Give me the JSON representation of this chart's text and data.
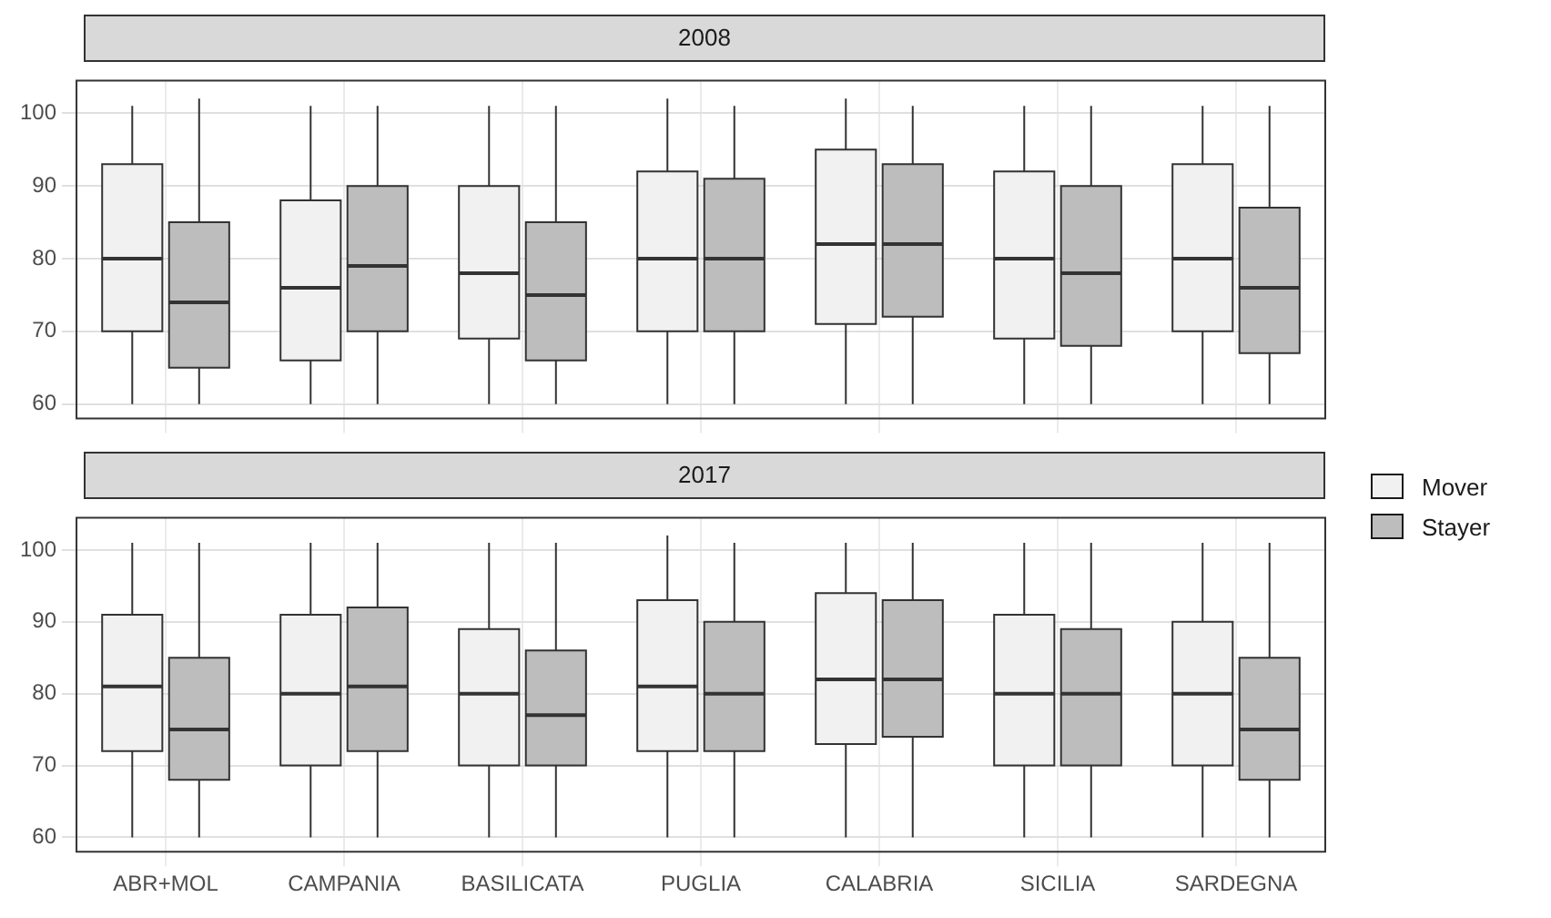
{
  "chart_data": [
    {
      "type": "box",
      "title": "2008",
      "categories": [
        null,
        null,
        null,
        null,
        null,
        null,
        null
      ],
      "ylim": [
        58,
        104.5
      ],
      "yticks": [
        60,
        70,
        80,
        90,
        100
      ],
      "grid": true,
      "legend": "right",
      "tick_labels": "y",
      "series": [
        {
          "name": "Mover",
          "color": "#f0f1f0",
          "boxes": [
            {
              "low": 60,
              "q1": 70,
              "median": 80,
              "q3": 93,
              "high": 101
            },
            {
              "low": 60,
              "q1": 66,
              "median": 76,
              "q3": 88,
              "high": 101
            },
            {
              "low": 60,
              "q1": 69,
              "median": 78,
              "q3": 90,
              "high": 101
            },
            {
              "low": 60,
              "q1": 70,
              "median": 80,
              "q3": 92,
              "high": 102
            },
            {
              "low": 60,
              "q1": 71,
              "median": 82,
              "q3": 95,
              "high": 102
            },
            {
              "low": 60,
              "q1": 69,
              "median": 80,
              "q3": 92,
              "high": 101
            },
            {
              "low": 60,
              "q1": 70,
              "median": 80,
              "q3": 93,
              "high": 101
            }
          ]
        },
        {
          "name": "Stayer",
          "color": "#bdbdbd",
          "boxes": [
            {
              "low": 60,
              "q1": 65,
              "median": 74,
              "q3": 85,
              "high": 102
            },
            {
              "low": 60,
              "q1": 70,
              "median": 79,
              "q3": 90,
              "high": 101
            },
            {
              "low": 60,
              "q1": 66,
              "median": 75,
              "q3": 85,
              "high": 101
            },
            {
              "low": 60,
              "q1": 70,
              "median": 80,
              "q3": 91,
              "high": 101
            },
            {
              "low": 60,
              "q1": 72,
              "median": 82,
              "q3": 93,
              "high": 101
            },
            {
              "low": 60,
              "q1": 68,
              "median": 78,
              "q3": 90,
              "high": 101
            },
            {
              "low": 60,
              "q1": 67,
              "median": 76,
              "q3": 87,
              "high": 101
            }
          ]
        }
      ]
    },
    {
      "type": "box",
      "title": "2017",
      "categories": [
        "ABR+MOL",
        "CAMPANIA",
        "BASILICATA",
        "PUGLIA",
        "CALABRIA",
        "SICILIA",
        "SARDEGNA"
      ],
      "ylim": [
        58,
        104.5
      ],
      "yticks": [
        60,
        70,
        80,
        90,
        100
      ],
      "grid": true,
      "series": [
        {
          "color": "#f0f1f0",
          "boxes": [
            {
              "low": 60,
              "q1": 72,
              "median": 81,
              "q3": 91,
              "high": 101
            },
            {
              "low": 60,
              "q1": 70,
              "median": 80,
              "q3": 91,
              "high": 101
            },
            {
              "low": 60,
              "q1": 70,
              "median": 80,
              "q3": 89,
              "high": 101
            },
            {
              "low": 60,
              "q1": 72,
              "median": 81,
              "q3": 93,
              "high": 102
            },
            {
              "low": 60,
              "q1": 73,
              "median": 82,
              "q3": 94,
              "high": 101
            },
            {
              "low": 60,
              "q1": 70,
              "median": 80,
              "q3": 91,
              "high": 101
            },
            {
              "low": 60,
              "q1": 70,
              "median": 80,
              "q3": 90,
              "high": 101
            }
          ]
        },
        {
          "color": "#bdbdbd",
          "boxes": [
            {
              "low": 60,
              "q1": 68,
              "median": 75,
              "q3": 85,
              "high": 101
            },
            {
              "low": 60,
              "q1": 72,
              "median": 81,
              "q3": 92,
              "high": 101
            },
            {
              "low": 60,
              "q1": 70,
              "median": 77,
              "q3": 86,
              "high": 101
            },
            {
              "low": 60,
              "q1": 72,
              "median": 80,
              "q3": 90,
              "high": 101
            },
            {
              "low": 60,
              "q1": 74,
              "median": 82,
              "q3": 93,
              "high": 101
            },
            {
              "low": 60,
              "q1": 70,
              "median": 80,
              "q3": 89,
              "high": 101
            },
            {
              "low": 60,
              "q1": 68,
              "median": 75,
              "q3": 85,
              "high": 101
            }
          ]
        }
      ]
    }
  ]
}
